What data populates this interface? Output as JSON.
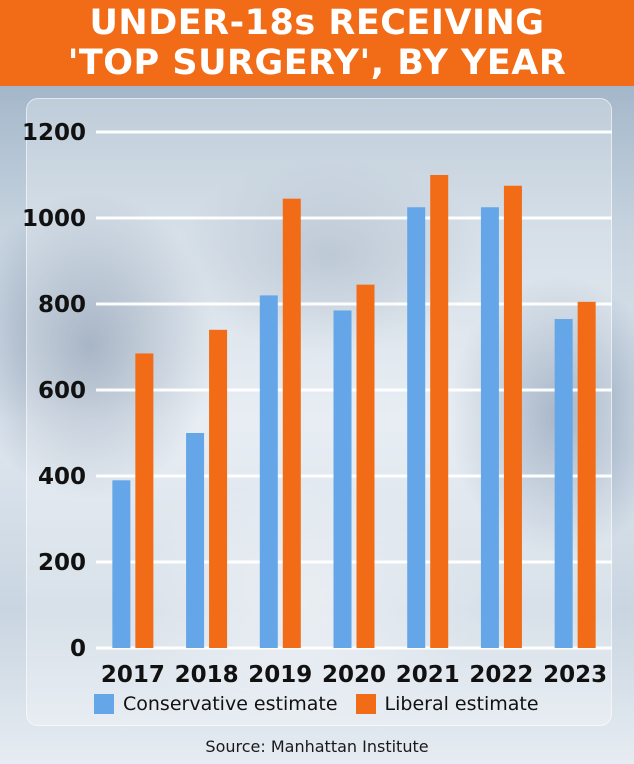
{
  "title": {
    "line1": "UNDER-18s RECEIVING",
    "line2": "'TOP SURGERY', BY YEAR"
  },
  "colors": {
    "header_bg": "#f26b16",
    "conservative": "#64a6e8",
    "liberal": "#f26b16"
  },
  "chart_data": {
    "type": "bar",
    "categories": [
      "2017",
      "2018",
      "2019",
      "2020",
      "2021",
      "2022",
      "2023"
    ],
    "series": [
      {
        "name": "Conservative estimate",
        "values": [
          390,
          500,
          820,
          785,
          1025,
          1025,
          765
        ]
      },
      {
        "name": "Liberal estimate",
        "values": [
          685,
          740,
          1045,
          845,
          1100,
          1075,
          805
        ]
      }
    ],
    "yticks": [
      "0",
      "200",
      "400",
      "600",
      "800",
      "1000",
      "1200"
    ],
    "ylim": [
      0,
      1200
    ],
    "grid": true,
    "legend_position": "bottom"
  },
  "legend": {
    "conservative_label": "Conservative estimate",
    "liberal_label": "Liberal estimate"
  },
  "source": "Source: Manhattan Institute"
}
